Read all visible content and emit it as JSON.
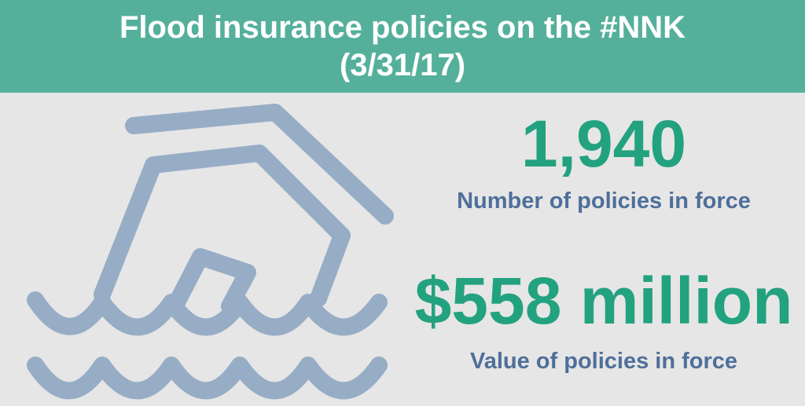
{
  "header": {
    "title_line1": "Flood insurance policies on the #NNK",
    "title_line2": "(3/31/17)"
  },
  "illustration": {
    "icon": "flooded-house-icon",
    "color": "#97adc6"
  },
  "stats": [
    {
      "value": "1,940",
      "caption": "Number of policies in force"
    },
    {
      "value": "$558 million",
      "caption": "Value of policies in force"
    }
  ],
  "colors": {
    "header_background": "#55b09b",
    "header_text": "#ffffff",
    "page_background": "#e6e6e6",
    "value_text": "#23a27f",
    "caption_text": "#4e6f9a"
  }
}
